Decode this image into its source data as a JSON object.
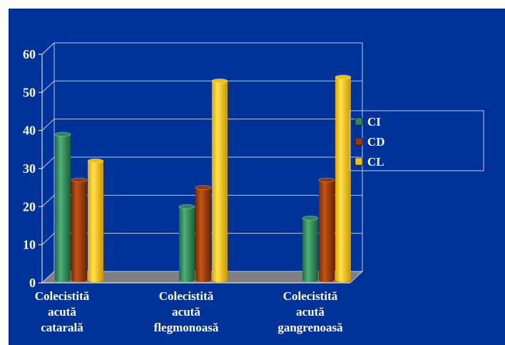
{
  "chart_data": {
    "type": "bar",
    "categories": [
      [
        "Colecistită",
        "acută",
        "catarală"
      ],
      [
        "Colecistită",
        "acută",
        "flegmonoasă"
      ],
      [
        "Colecistită",
        "acută",
        "gangrenoasă"
      ]
    ],
    "series": [
      {
        "name": "CI",
        "values": [
          39,
          20,
          17
        ],
        "color": "#2e8b57"
      },
      {
        "name": "CD",
        "values": [
          27,
          25,
          27
        ],
        "color": "#9b3a00"
      },
      {
        "name": "CL",
        "values": [
          32,
          53,
          54
        ],
        "color": "#f2c200"
      }
    ],
    "yticks": [
      "0",
      "10",
      "20",
      "30",
      "40",
      "50",
      "60"
    ],
    "ylim": [
      0,
      60
    ],
    "grid": true,
    "legend_position": "right",
    "colors": {
      "background": "#003399",
      "frame": "#c0c8e0",
      "floor": "#808080"
    }
  }
}
